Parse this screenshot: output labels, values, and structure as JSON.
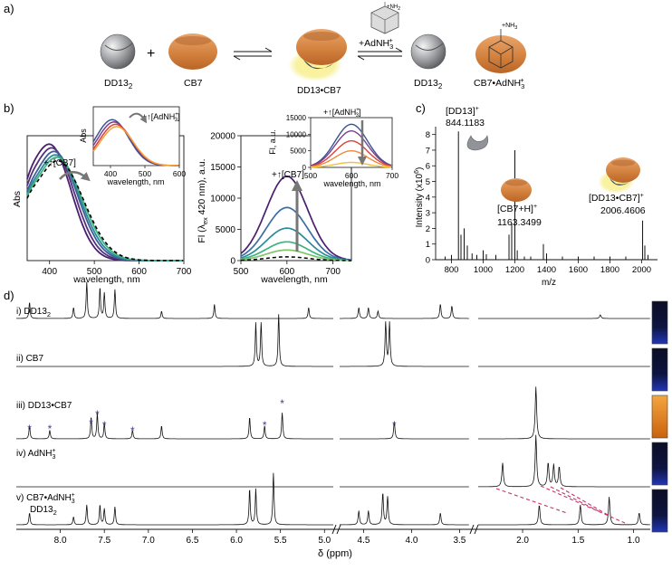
{
  "panel_labels": {
    "a": "a)",
    "b": "b)",
    "c": "c)",
    "d": "d)"
  },
  "panel_a": {
    "species": [
      "DD13",
      "CB7",
      "DD13•CB7",
      "DD13",
      "CB7•AdNH"
    ],
    "subscript_2": "2",
    "charge_plus": "+",
    "charge_sup": "3",
    "ligand_label": "+AdNH",
    "ligand_sup": "+",
    "ligand_sub": "3",
    "nh3_label": "NH",
    "nh3_sub": "2",
    "nh3_plus": "+",
    "plus_sign": "+",
    "colors": {
      "cb7": "#d9884a",
      "dd13_dark": "#3c4b5e",
      "dd13_grey": "#8a8d92",
      "glow": "#f5ec7a"
    }
  },
  "panel_b_abs": {
    "ylabel": "Abs",
    "xlabel": "wavelength, nm",
    "xticks": [
      "400",
      "500",
      "600",
      "700"
    ],
    "xlim": [
      350,
      700
    ],
    "annotation": "+↑[CB7]"
  },
  "panel_b_abs_inset": {
    "ylabel": "Abs",
    "xlabel": "wavelength, nm",
    "xticks": [
      "400",
      "500",
      "600"
    ],
    "xlim": [
      350,
      600
    ],
    "annotation": "+↑[AdNH",
    "annotation_sup": "+",
    "annotation_sub": "3",
    "annotation_close": "]"
  },
  "panel_b_fl": {
    "ylabel_pre": "Fl (λ",
    "ylabel_sub": "ex",
    "ylabel_post": " 420 nm), a.u.",
    "xlabel": "wavelength, nm",
    "xticks": [
      "500",
      "600",
      "700"
    ],
    "yticks": [
      "0",
      "5000",
      "10000",
      "15000",
      "20000"
    ],
    "xlim": [
      500,
      740
    ],
    "ylim": [
      0,
      20000
    ],
    "annotation": "+↑[CB7]"
  },
  "panel_b_fl_inset": {
    "ylabel": "Fl, a.u.",
    "xlabel": "wavelength, nm",
    "xticks": [
      "500",
      "600",
      "700"
    ],
    "yticks": [
      "0",
      "5000",
      "10000",
      "15000"
    ],
    "xlim": [
      500,
      700
    ],
    "ylim": [
      0,
      15000
    ],
    "annotation": "+↑[AdNH",
    "annotation_sup": "+",
    "annotation_sub": "3",
    "annotation_close": "]"
  },
  "panel_c": {
    "ylabel_pre": "Intensity (x10",
    "ylabel_sup": "6",
    "ylabel_post": ")",
    "xlabel": "m/z",
    "xticks": [
      "800",
      "1000",
      "1200",
      "1400",
      "1600",
      "1800",
      "2000"
    ],
    "yticks": [
      "0",
      "1",
      "2",
      "3",
      "4",
      "5",
      "6",
      "7",
      "8"
    ],
    "xlim": [
      700,
      2100
    ],
    "ylim": [
      0,
      8.5
    ],
    "peak_labels": [
      {
        "name": "[DD13]",
        "sup": "+",
        "mz": "844.1183"
      },
      {
        "name": "[CB7+H]",
        "sup": "+",
        "mz": "1163.3499"
      },
      {
        "name": "[DD13•CB7]",
        "sup": "+",
        "mz": "2006.4606"
      }
    ]
  },
  "panel_d": {
    "rows": [
      {
        "roman": "i)",
        "label": "DD13",
        "sub": "2"
      },
      {
        "roman": "ii)",
        "label": "CB7",
        "sub": ""
      },
      {
        "roman": "iii)",
        "label": "DD13•CB7",
        "sub": ""
      },
      {
        "roman": "iv)",
        "label": "AdNH",
        "sub": "3",
        "sup": "+"
      },
      {
        "roman": "v)",
        "label": "CB7•AdNH",
        "sub": "3",
        "sup": "+",
        "label2": "DD13",
        "sub2": "2"
      }
    ],
    "xlabel": "δ (ppm)",
    "xticks_seg1": [
      "8.0",
      "7.5",
      "7.0",
      "6.5",
      "6.0",
      "5.5",
      "5.0"
    ],
    "xticks_seg2": [
      "4.5",
      "4.0",
      "3.5"
    ],
    "xticks_seg3": [
      "2.0",
      "1.5",
      "1.0"
    ],
    "star": "*",
    "vial_colors": [
      "#1e2e8c",
      "#1e2e8c",
      "#e07a14",
      "#1e2e8c",
      "#1e2e8c"
    ]
  },
  "chart_data": [
    {
      "type": "line",
      "title": "",
      "xlabel": "wavelength, nm",
      "ylabel": "Abs",
      "xlim": [
        350,
        700
      ],
      "series": [
        {
          "color": "#4b1f6f",
          "peak_x": 400,
          "peak_y": 1.0
        },
        {
          "color": "#54307a",
          "peak_x": 405,
          "peak_y": 0.97
        },
        {
          "color": "#3d5f98",
          "peak_x": 410,
          "peak_y": 0.94
        },
        {
          "color": "#2c8a9a",
          "peak_x": 413,
          "peak_y": 0.91
        },
        {
          "color": "#3fb37f",
          "peak_x": 416,
          "peak_y": 0.89
        },
        {
          "color": "#000000",
          "peak_x": 418,
          "peak_y": 0.86,
          "dashed": true
        }
      ]
    },
    {
      "type": "line",
      "title": "",
      "xlabel": "wavelength, nm",
      "ylabel": "Abs",
      "xlim": [
        350,
        600
      ],
      "series": [
        {
          "color": "#3a5590",
          "peak_x": 405,
          "peak_y": 1.0
        },
        {
          "color": "#7a3f8f",
          "peak_x": 410,
          "peak_y": 0.95
        },
        {
          "color": "#d8423a",
          "peak_x": 415,
          "peak_y": 0.9
        },
        {
          "color": "#f0a23a",
          "peak_x": 418,
          "peak_y": 0.85
        }
      ]
    },
    {
      "type": "line",
      "title": "",
      "xlabel": "wavelength, nm",
      "ylabel": "Fl (λex 420 nm), a.u.",
      "xlim": [
        500,
        740
      ],
      "ylim": [
        0,
        20000
      ],
      "series": [
        {
          "color": "#4b1f6f",
          "peak_x": 600,
          "peak_y": 13500
        },
        {
          "color": "#3a6ea5",
          "peak_x": 600,
          "peak_y": 8500
        },
        {
          "color": "#2c8a9a",
          "peak_x": 600,
          "peak_y": 5200
        },
        {
          "color": "#3fb37f",
          "peak_x": 600,
          "peak_y": 3000
        },
        {
          "color": "#7ec46a",
          "peak_x": 600,
          "peak_y": 1700
        },
        {
          "color": "#000000",
          "peak_x": 600,
          "peak_y": 600,
          "dashed": true
        }
      ]
    },
    {
      "type": "line",
      "title": "",
      "xlabel": "wavelength, nm",
      "ylabel": "Fl, a.u.",
      "xlim": [
        500,
        700
      ],
      "ylim": [
        0,
        15000
      ],
      "series": [
        {
          "color": "#3a5590",
          "peak_x": 600,
          "peak_y": 13000
        },
        {
          "color": "#7a3f8f",
          "peak_x": 600,
          "peak_y": 11000
        },
        {
          "color": "#d8423a",
          "peak_x": 600,
          "peak_y": 8000
        },
        {
          "color": "#f08a3a",
          "peak_x": 600,
          "peak_y": 5000
        },
        {
          "color": "#f0c23a",
          "peak_x": 600,
          "peak_y": 1500
        }
      ]
    },
    {
      "type": "bar",
      "title": "",
      "xlabel": "m/z",
      "ylabel": "Intensity (x10^6)",
      "xlim": [
        700,
        2100
      ],
      "ylim": [
        0,
        8.5
      ],
      "peaks": [
        [
          760,
          0.2
        ],
        [
          800,
          0.3
        ],
        [
          844,
          8.2
        ],
        [
          860,
          1.6
        ],
        [
          880,
          2.0
        ],
        [
          900,
          0.9
        ],
        [
          930,
          0.4
        ],
        [
          960,
          0.3
        ],
        [
          1000,
          0.6
        ],
        [
          1020,
          0.35
        ],
        [
          1080,
          0.3
        ],
        [
          1163,
          1.6
        ],
        [
          1180,
          2.3
        ],
        [
          1200,
          7.0
        ],
        [
          1215,
          0.6
        ],
        [
          1260,
          0.2
        ],
        [
          1300,
          0.2
        ],
        [
          1380,
          1.0
        ],
        [
          1400,
          0.4
        ],
        [
          1500,
          0.2
        ],
        [
          1600,
          0.2
        ],
        [
          1700,
          0.2
        ],
        [
          1800,
          0.2
        ],
        [
          1900,
          0.2
        ],
        [
          2006,
          2.5
        ],
        [
          2020,
          0.9
        ],
        [
          2040,
          0.3
        ]
      ]
    },
    {
      "type": "line",
      "title": "",
      "xlabel": "δ (ppm)",
      "series": [
        {
          "name": "DD13",
          "peaks": [
            [
              8.35,
              0.45
            ],
            [
              7.85,
              0.3
            ],
            [
              7.7,
              1.0
            ],
            [
              7.55,
              0.85
            ],
            [
              7.5,
              0.7
            ],
            [
              7.38,
              0.8
            ],
            [
              6.85,
              0.2
            ],
            [
              6.25,
              0.4
            ],
            [
              5.18,
              0.3
            ],
            [
              4.55,
              0.3
            ],
            [
              4.45,
              0.3
            ],
            [
              4.35,
              0.2
            ],
            [
              3.7,
              0.4
            ],
            [
              3.58,
              0.35
            ],
            [
              1.3,
              0.1
            ]
          ]
        },
        {
          "name": "CB7",
          "peaks": [
            [
              5.78,
              1.0
            ],
            [
              5.72,
              1.0
            ],
            [
              5.52,
              1.2
            ],
            [
              4.27,
              1.0
            ],
            [
              4.23,
              1.0
            ]
          ]
        },
        {
          "name": "DD13•CB7",
          "peaks": [
            [
              8.35,
              0.3
            ],
            [
              8.12,
              0.2
            ],
            [
              7.65,
              0.5
            ],
            [
              7.58,
              0.6
            ],
            [
              7.5,
              0.35
            ],
            [
              7.18,
              0.2
            ],
            [
              6.85,
              0.3
            ],
            [
              5.85,
              0.5
            ],
            [
              5.68,
              0.3
            ],
            [
              5.48,
              0.6
            ],
            [
              4.18,
              0.4
            ],
            [
              1.88,
              1.2
            ]
          ]
        },
        {
          "name": "AdNH3",
          "peaks": [
            [
              2.18,
              0.6
            ],
            [
              1.88,
              1.3
            ],
            [
              1.77,
              0.6
            ],
            [
              1.72,
              0.55
            ],
            [
              1.67,
              0.5
            ]
          ]
        },
        {
          "name": "CB7•AdNH3 DD13",
          "peaks": [
            [
              8.35,
              0.3
            ],
            [
              7.85,
              0.2
            ],
            [
              7.7,
              0.5
            ],
            [
              7.55,
              0.5
            ],
            [
              7.5,
              0.4
            ],
            [
              7.38,
              0.45
            ],
            [
              5.85,
              0.9
            ],
            [
              5.78,
              0.9
            ],
            [
              5.58,
              1.3
            ],
            [
              4.55,
              0.35
            ],
            [
              4.45,
              0.35
            ],
            [
              4.3,
              0.8
            ],
            [
              4.25,
              0.7
            ],
            [
              3.7,
              0.3
            ],
            [
              1.85,
              0.5
            ],
            [
              1.48,
              0.5
            ],
            [
              1.22,
              0.7
            ],
            [
              0.95,
              0.3
            ]
          ]
        }
      ]
    }
  ]
}
